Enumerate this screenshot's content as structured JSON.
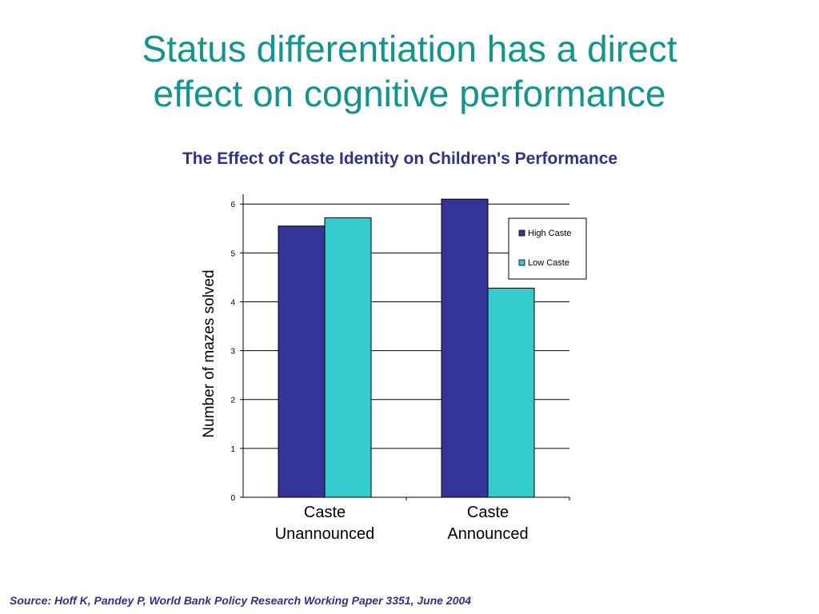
{
  "slide": {
    "title_line1": "Status differentiation has a direct",
    "title_line2": "effect on cognitive performance",
    "source": "Source:  Hoff K, Pandey P, World Bank Policy Research Working Paper 3351, June 2004"
  },
  "colors": {
    "title": "#10968e",
    "chart_title": "#2e3192",
    "high_caste": "#333399",
    "low_caste": "#33cccc",
    "source": "#2e3192"
  },
  "chart_data": {
    "type": "bar",
    "title": "The Effect of Caste Identity on Children's Performance",
    "ylabel": "Number of mazes solved",
    "xlabel": "",
    "categories": [
      [
        "Caste",
        "Unannounced"
      ],
      [
        "Caste",
        "Announced"
      ]
    ],
    "series": [
      {
        "name": "High Caste",
        "values": [
          5.55,
          6.1
        ]
      },
      {
        "name": "Low Caste",
        "values": [
          5.72,
          4.28
        ]
      }
    ],
    "ylim": [
      0,
      6.2
    ],
    "yticks": [
      0,
      1,
      2,
      3,
      4,
      5,
      6
    ],
    "grid": true,
    "legend_position": "right"
  }
}
